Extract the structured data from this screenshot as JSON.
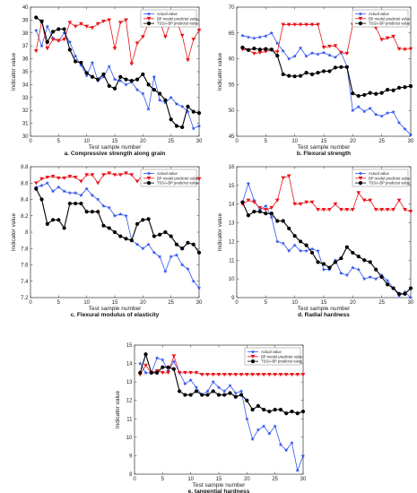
{
  "chart_data": [
    {
      "type": "line",
      "caption": "a. Compressive strength along grain",
      "xlabel": "Test sample number",
      "ylabel": "Indicator value",
      "xlim": [
        0,
        30
      ],
      "ylim": [
        30,
        40
      ],
      "xticks": [
        0,
        5,
        10,
        15,
        20,
        25,
        30
      ],
      "yticks": [
        30,
        31,
        32,
        33,
        34,
        35,
        36,
        37,
        38,
        39,
        40
      ],
      "legend_position": "top-right",
      "x": [
        1,
        2,
        3,
        4,
        5,
        6,
        7,
        8,
        9,
        10,
        11,
        12,
        13,
        14,
        15,
        16,
        17,
        18,
        19,
        20,
        21,
        22,
        23,
        24,
        25,
        26,
        27,
        28,
        29,
        30
      ],
      "series": [
        {
          "name": "Actual value",
          "color": "#3355ee",
          "marker": "star",
          "values": [
            38.2,
            37.0,
            38.5,
            37.6,
            37.4,
            38.0,
            37.3,
            36.2,
            35.5,
            34.7,
            35.7,
            34.3,
            34.6,
            35.4,
            34.4,
            34.3,
            34.0,
            34.2,
            33.6,
            33.3,
            32.1,
            34.6,
            32.8,
            32.6,
            33.0,
            32.5,
            32.3,
            31.9,
            30.6,
            30.8
          ]
        },
        {
          "name": "BP model predictet value",
          "color": "#e8161b",
          "marker": "triangle-down",
          "values": [
            36.6,
            38.9,
            36.8,
            37.5,
            37.4,
            37.5,
            38.8,
            38.5,
            38.7,
            38.5,
            38.4,
            38.7,
            38.9,
            39.0,
            36.8,
            38.8,
            39.0,
            35.6,
            37.2,
            37.7,
            38.8,
            38.8,
            38.9,
            37.7,
            38.9,
            38.9,
            37.8,
            35.9,
            37.5,
            38.2
          ]
        },
        {
          "name": "TSSA-BP predictet value",
          "color": "#000000",
          "marker": "circle",
          "values": [
            39.2,
            38.9,
            37.3,
            38.1,
            38.3,
            38.3,
            36.7,
            35.8,
            35.7,
            34.9,
            34.6,
            34.4,
            34.8,
            33.9,
            33.7,
            34.6,
            34.4,
            34.3,
            34.4,
            34.8,
            34.0,
            33.6,
            33.3,
            32.8,
            31.3,
            30.8,
            30.7,
            32.3,
            31.9,
            31.8
          ]
        }
      ]
    },
    {
      "type": "line",
      "caption": "b. Flexural strength",
      "xlabel": "Test sample number",
      "ylabel": "Indicator value",
      "xlim": [
        0,
        30
      ],
      "ylim": [
        45,
        70
      ],
      "xticks": [
        0,
        5,
        10,
        15,
        20,
        25,
        30
      ],
      "yticks": [
        45,
        50,
        55,
        60,
        65,
        70
      ],
      "legend_position": "top-right",
      "x": [
        1,
        2,
        3,
        4,
        5,
        6,
        7,
        8,
        9,
        10,
        11,
        12,
        13,
        14,
        15,
        16,
        17,
        18,
        19,
        20,
        21,
        22,
        23,
        24,
        25,
        26,
        27,
        28,
        29,
        30
      ],
      "series": [
        {
          "name": "Actual value",
          "color": "#3355ee",
          "marker": "star",
          "values": [
            64.5,
            64.2,
            64.0,
            64.2,
            64.4,
            65.0,
            63.0,
            61.5,
            60.0,
            60.5,
            62.1,
            60.5,
            61.1,
            60.9,
            61.2,
            60.7,
            60.3,
            61.2,
            58.5,
            50.0,
            50.7,
            49.8,
            50.4,
            49.2,
            48.9,
            49.5,
            49.7,
            47.6,
            46.4,
            45.3
          ]
        },
        {
          "name": "BP model predictet value",
          "color": "#e8161b",
          "marker": "triangle-down",
          "values": [
            61.8,
            61.7,
            61.0,
            61.2,
            61.4,
            61.7,
            61.3,
            66.6,
            66.6,
            66.6,
            66.6,
            66.6,
            66.6,
            66.6,
            62.2,
            62.4,
            62.5,
            61.2,
            61.0,
            66.6,
            66.6,
            66.6,
            66.6,
            66.0,
            63.7,
            64.0,
            64.3,
            61.9,
            61.8,
            61.9
          ]
        },
        {
          "name": "TSSA-BP predictet value",
          "color": "#000000",
          "marker": "circle",
          "values": [
            62.2,
            61.7,
            62.0,
            61.8,
            61.9,
            61.8,
            60.6,
            57.0,
            56.7,
            56.6,
            56.7,
            57.3,
            57.0,
            57.3,
            57.6,
            57.6,
            58.3,
            58.4,
            58.4,
            53.3,
            52.8,
            53.0,
            53.4,
            53.2,
            53.4,
            54.0,
            53.9,
            54.4,
            54.5,
            54.7
          ]
        }
      ]
    },
    {
      "type": "line",
      "caption": "c. Flexural modulus of elasticity",
      "xlabel": "Test sample number",
      "ylabel": "Indicator value",
      "xlim": [
        0,
        30
      ],
      "ylim": [
        7.2,
        8.8
      ],
      "xticks": [
        0,
        5,
        10,
        15,
        20,
        25,
        30
      ],
      "yticks": [
        7.2,
        7.4,
        7.6,
        7.8,
        8.0,
        8.2,
        8.4,
        8.6,
        8.8
      ],
      "ytick_labels": [
        "7.2",
        "7.4",
        "7.6",
        "7.8",
        "8",
        "8.2",
        "8.4",
        "8.6",
        "8.8"
      ],
      "legend_position": "top-right",
      "x": [
        1,
        2,
        3,
        4,
        5,
        6,
        7,
        8,
        9,
        10,
        11,
        12,
        13,
        14,
        15,
        16,
        17,
        18,
        19,
        20,
        21,
        22,
        23,
        24,
        25,
        26,
        27,
        28,
        29,
        30
      ],
      "series": [
        {
          "name": "Actual value",
          "color": "#3355ee",
          "marker": "star",
          "values": [
            8.55,
            8.57,
            8.6,
            8.5,
            8.55,
            8.5,
            8.48,
            8.48,
            8.45,
            8.53,
            8.45,
            8.4,
            8.32,
            8.3,
            8.2,
            8.22,
            8.2,
            7.9,
            7.85,
            7.8,
            7.85,
            7.75,
            7.7,
            7.52,
            7.7,
            7.72,
            7.6,
            7.55,
            7.4,
            7.32
          ]
        },
        {
          "name": "BP model predictet value",
          "color": "#e8161b",
          "marker": "triangle-down",
          "values": [
            8.6,
            8.65,
            8.67,
            8.68,
            8.66,
            8.66,
            8.68,
            8.67,
            8.62,
            8.7,
            8.7,
            8.6,
            8.7,
            8.72,
            8.7,
            8.7,
            8.72,
            8.7,
            8.62,
            8.7,
            8.7,
            8.7,
            8.7,
            8.7,
            8.7,
            8.7,
            8.7,
            8.7,
            8.7,
            8.65
          ]
        },
        {
          "name": "TSSA-BP predictet value",
          "color": "#000000",
          "marker": "circle",
          "values": [
            8.53,
            8.4,
            8.1,
            8.15,
            8.15,
            8.05,
            8.35,
            8.35,
            8.35,
            8.25,
            8.25,
            8.25,
            8.08,
            8.05,
            8.0,
            7.95,
            7.92,
            7.9,
            8.1,
            8.15,
            8.16,
            7.95,
            7.97,
            8.0,
            7.95,
            7.85,
            7.8,
            7.87,
            7.85,
            7.75
          ]
        }
      ]
    },
    {
      "type": "line",
      "caption": "d. Radial hardness",
      "xlabel": "Test sample number",
      "ylabel": "Indicator value",
      "xlim": [
        0,
        30
      ],
      "ylim": [
        9,
        16
      ],
      "xticks": [
        0,
        5,
        10,
        15,
        20,
        25,
        30
      ],
      "yticks": [
        9,
        10,
        11,
        12,
        13,
        14,
        15,
        16
      ],
      "legend_position": "top-right",
      "x": [
        1,
        2,
        3,
        4,
        5,
        6,
        7,
        8,
        9,
        10,
        11,
        12,
        13,
        14,
        15,
        16,
        17,
        18,
        19,
        20,
        21,
        22,
        23,
        24,
        25,
        26,
        27,
        28,
        29,
        30
      ],
      "series": [
        {
          "name": "Actual value",
          "color": "#3355ee",
          "marker": "star",
          "values": [
            14.1,
            15.1,
            14.2,
            13.7,
            13.9,
            13.3,
            12.0,
            11.9,
            11.5,
            11.8,
            11.5,
            11.5,
            11.6,
            11.5,
            10.5,
            10.5,
            11.0,
            10.3,
            10.2,
            10.6,
            10.5,
            10.0,
            10.1,
            10.0,
            10.2,
            9.9,
            9.5,
            9.1,
            9.3,
            9.0
          ]
        },
        {
          "name": "BP model predictet value",
          "color": "#e8161b",
          "marker": "triangle-down",
          "values": [
            14.0,
            14.2,
            14.1,
            13.8,
            13.7,
            13.8,
            14.2,
            15.4,
            15.5,
            14.0,
            14.0,
            14.1,
            14.1,
            13.7,
            13.7,
            13.7,
            14.0,
            13.7,
            13.7,
            13.7,
            14.6,
            14.2,
            14.2,
            13.7,
            13.7,
            13.7,
            13.7,
            14.2,
            13.7,
            13.6
          ]
        },
        {
          "name": "TSSA-BP predictet value",
          "color": "#000000",
          "marker": "circle",
          "values": [
            14.1,
            13.4,
            13.6,
            13.6,
            13.5,
            13.5,
            13.1,
            13.1,
            12.7,
            12.3,
            12.0,
            11.8,
            11.4,
            10.9,
            10.8,
            10.6,
            10.9,
            11.1,
            11.7,
            11.4,
            11.2,
            11.0,
            10.9,
            10.5,
            10.1,
            9.7,
            9.5,
            9.2,
            9.2,
            9.5
          ]
        }
      ]
    },
    {
      "type": "line",
      "caption": "e. tangential hardness",
      "xlabel": "Test sample number",
      "ylabel": "Indicator value",
      "xlim": [
        0,
        30
      ],
      "ylim": [
        8,
        15
      ],
      "xticks": [
        0,
        5,
        10,
        15,
        20,
        25,
        30
      ],
      "yticks": [
        8,
        9,
        10,
        11,
        12,
        13,
        14,
        15
      ],
      "legend_position": "top-right",
      "x": [
        1,
        2,
        3,
        4,
        5,
        6,
        7,
        8,
        9,
        10,
        11,
        12,
        13,
        14,
        15,
        16,
        17,
        18,
        19,
        20,
        21,
        22,
        23,
        24,
        25,
        26,
        27,
        28,
        29,
        30
      ],
      "series": [
        {
          "name": "Actual value",
          "color": "#3355ee",
          "marker": "star",
          "values": [
            14.0,
            13.5,
            13.5,
            14.3,
            14.2,
            13.6,
            14.1,
            13.5,
            12.9,
            13.1,
            12.7,
            12.3,
            12.5,
            13.0,
            12.7,
            12.5,
            12.8,
            12.4,
            12.5,
            11.0,
            9.9,
            10.4,
            10.6,
            10.2,
            10.6,
            9.6,
            9.3,
            9.7,
            8.2,
            9.0
          ]
        },
        {
          "name": "BP model predictet value",
          "color": "#e8161b",
          "marker": "triangle-down",
          "values": [
            13.4,
            13.9,
            13.5,
            13.6,
            13.5,
            13.5,
            14.4,
            13.5,
            13.5,
            13.5,
            13.5,
            13.4,
            13.4,
            13.4,
            13.4,
            13.4,
            13.4,
            13.4,
            13.4,
            13.4,
            13.4,
            13.4,
            13.4,
            13.4,
            13.4,
            13.4,
            13.4,
            13.4,
            13.4,
            13.4
          ]
        },
        {
          "name": "TSSA-BP predictet value",
          "color": "#000000",
          "marker": "circle",
          "values": [
            13.5,
            14.5,
            13.5,
            13.5,
            13.8,
            13.8,
            13.7,
            12.5,
            12.3,
            12.3,
            12.5,
            12.3,
            12.3,
            12.5,
            12.3,
            12.3,
            12.4,
            12.2,
            12.3,
            12.0,
            11.5,
            11.7,
            11.5,
            11.4,
            11.5,
            11.5,
            11.3,
            11.4,
            11.3,
            11.4
          ]
        }
      ]
    }
  ]
}
